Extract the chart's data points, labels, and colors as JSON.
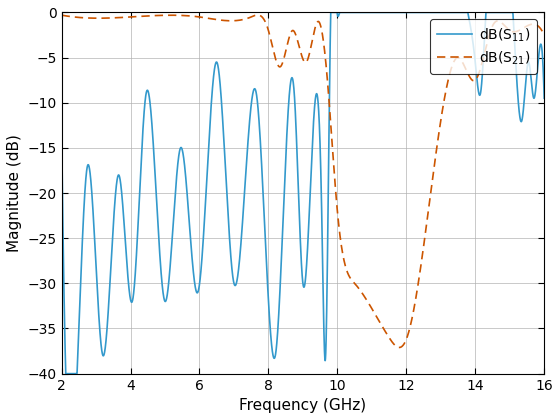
{
  "xlabel": "Frequency (GHz)",
  "ylabel": "Magnitude (dB)",
  "xlim": [
    2,
    16
  ],
  "ylim": [
    -40,
    0
  ],
  "xticks": [
    2,
    4,
    6,
    8,
    10,
    12,
    14,
    16
  ],
  "yticks": [
    0,
    -5,
    -10,
    -15,
    -20,
    -25,
    -30,
    -35,
    -40
  ],
  "s11_color": "#3399CC",
  "s21_color": "#CC5500",
  "background_color": "#ffffff",
  "grid_color": "#b0b0b0"
}
